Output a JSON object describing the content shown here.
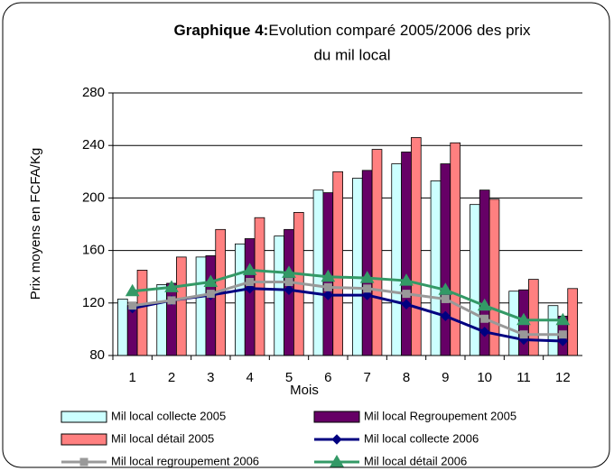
{
  "chart_data": {
    "type": "bar_line",
    "title_bold": "Graphique 4:",
    "title": "Evolution comparé 2005/2006 des prix du mil local",
    "ylabel": "Prix moyens en FCFA/Kg",
    "xlabel": "Mois",
    "categories": [
      "1",
      "2",
      "3",
      "4",
      "5",
      "6",
      "7",
      "8",
      "9",
      "10",
      "11",
      "12"
    ],
    "ylim": [
      80,
      280
    ],
    "yticks": [
      80,
      120,
      160,
      200,
      240,
      280
    ],
    "series": [
      {
        "name": "Mil local collecte 2005",
        "kind": "bar",
        "color": "#ccffff",
        "values": [
          123,
          134,
          155,
          165,
          171,
          206,
          215,
          226,
          213,
          195,
          129,
          118
        ]
      },
      {
        "name": "Mil local Regroupement 2005",
        "kind": "bar",
        "color": "#660066",
        "values": [
          118,
          135,
          156,
          169,
          176,
          204,
          221,
          235,
          226,
          206,
          130,
          110
        ]
      },
      {
        "name": "Mil local détail 2005",
        "kind": "bar",
        "color": "#ff8080",
        "values": [
          145,
          155,
          176,
          185,
          189,
          220,
          237,
          246,
          242,
          199,
          138,
          131
        ]
      },
      {
        "name": "Mil local collecte 2006",
        "kind": "line",
        "marker": "diamond",
        "color": "#000080",
        "values": [
          116,
          122,
          126,
          131,
          130,
          126,
          126,
          119,
          110,
          98,
          92,
          91
        ]
      },
      {
        "name": "Mil local regroupement 2006",
        "kind": "line",
        "marker": "square",
        "color": "#999999",
        "values": [
          118,
          122,
          127,
          136,
          136,
          132,
          131,
          127,
          123,
          108,
          96,
          96
        ]
      },
      {
        "name": "Mil local détail 2006",
        "kind": "line",
        "marker": "triangle",
        "color": "#339966",
        "values": [
          129,
          132,
          136,
          145,
          143,
          140,
          139,
          137,
          130,
          118,
          107,
          107
        ]
      }
    ]
  }
}
